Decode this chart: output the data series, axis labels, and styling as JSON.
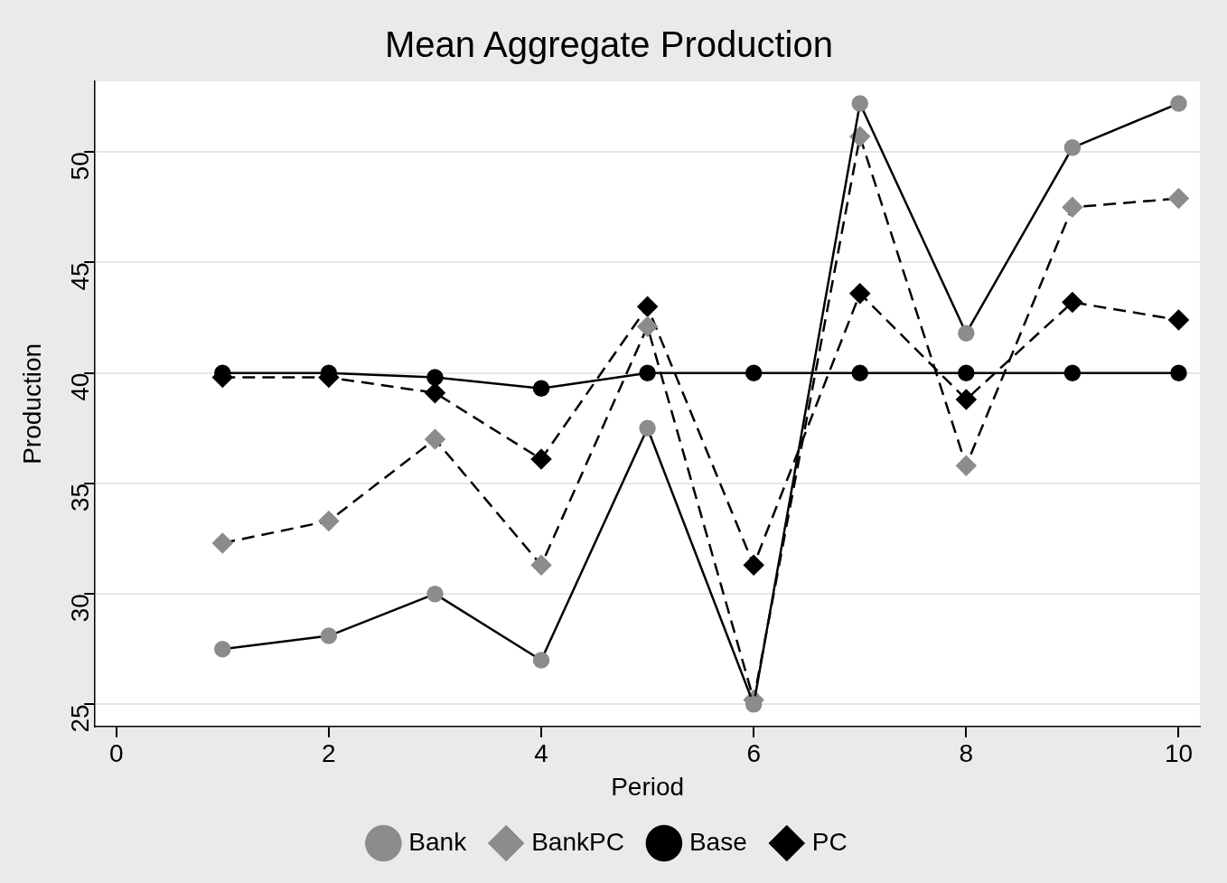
{
  "chart_data": {
    "type": "line",
    "title": "Mean Aggregate Production",
    "xlabel": "Period",
    "ylabel": "Production",
    "x": [
      1,
      2,
      3,
      4,
      5,
      6,
      7,
      8,
      9,
      10
    ],
    "series": [
      {
        "name": "Bank",
        "color": "#8c8c8c",
        "marker": "circle",
        "line_style": "solid",
        "values": [
          27.5,
          28.1,
          30.0,
          27.0,
          37.5,
          25.0,
          52.2,
          41.8,
          50.2,
          52.2
        ]
      },
      {
        "name": "BankPC",
        "color": "#8c8c8c",
        "marker": "diamond",
        "line_style": "dashed",
        "values": [
          32.3,
          33.3,
          37.0,
          31.3,
          42.1,
          25.2,
          50.7,
          35.8,
          47.5,
          47.9
        ]
      },
      {
        "name": "Base",
        "color": "#000000",
        "marker": "circle",
        "line_style": "solid",
        "values": [
          40.0,
          40.0,
          39.8,
          39.3,
          40.0,
          40.0,
          40.0,
          40.0,
          40.0,
          40.0
        ]
      },
      {
        "name": "PC",
        "color": "#000000",
        "marker": "diamond",
        "line_style": "dashed",
        "values": [
          39.8,
          39.8,
          39.1,
          36.1,
          43.0,
          31.3,
          43.6,
          38.8,
          43.2,
          42.4
        ]
      }
    ],
    "xlim": [
      -0.2,
      10.2
    ],
    "xticks": [
      0,
      2,
      4,
      6,
      8,
      10
    ],
    "ylim": [
      24,
      53.2
    ],
    "yticks": [
      25,
      30,
      35,
      40,
      45,
      50
    ],
    "grid": "y",
    "legend": "bottom"
  }
}
